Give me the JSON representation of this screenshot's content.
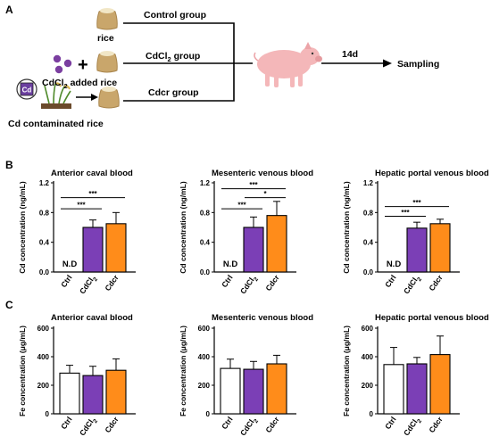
{
  "panels": {
    "a": "A",
    "b": "B",
    "c": "C"
  },
  "schematic": {
    "rice": "rice",
    "cdcl2_rice_prefix": "CdCl",
    "cdcl2_rice_sub": "2",
    "cdcl2_rice_suffix": " added rice",
    "cd_rice": "Cd contaminated rice",
    "cd_badge": "Cd",
    "control_group": "Control group",
    "cdcl2_group_prefix": "CdCl",
    "cdcl2_group_sub": "2",
    "cdcl2_group_suffix": " group",
    "cdcr_group": "Cdcr group",
    "duration": "14d",
    "sampling": "Sampling",
    "colors": {
      "sack": "#c9a66b",
      "sack_dark": "#a9854c",
      "rice_grain": "#f1e6c6",
      "cd_dot": "#7b3fa0",
      "pig": "#f4b7b9",
      "badge": "#6b3fa0"
    }
  },
  "colors": {
    "ctrl": "#ffffff",
    "cdcl2": "#7b3fb6",
    "cdcr": "#ff8c1a",
    "outline": "#000000"
  },
  "chart_data": [
    {
      "type": "bar",
      "row": "B",
      "title": "Anterior caval blood",
      "ylabel": "Cd concentration (ng/mL)",
      "ylim": [
        0,
        1.2
      ],
      "yticks": [
        "0.0",
        "0.4",
        "0.8",
        "1.2"
      ],
      "categories": [
        "Ctrl",
        "CdCl2",
        "Cdcr"
      ],
      "values": [
        0,
        0.6,
        0.65
      ],
      "errors": [
        0,
        0.1,
        0.15
      ],
      "annotations": {
        "not_detected": "N.D",
        "significance": [
          {
            "from": 0,
            "to": 1,
            "label": "***",
            "y": 0.85
          },
          {
            "from": 0,
            "to": 2,
            "label": "***",
            "y": 1.0
          }
        ]
      }
    },
    {
      "type": "bar",
      "row": "B",
      "title": "Mesenteric venous blood",
      "ylabel": "Cd concentration (ng/mL)",
      "ylim": [
        0,
        1.2
      ],
      "yticks": [
        "0.0",
        "0.4",
        "0.8",
        "1.2"
      ],
      "categories": [
        "Ctrl",
        "CdCl2",
        "Cdcr"
      ],
      "values": [
        0,
        0.6,
        0.76
      ],
      "errors": [
        0,
        0.14,
        0.19
      ],
      "annotations": {
        "not_detected": "N.D",
        "significance": [
          {
            "from": 0,
            "to": 1,
            "label": "***",
            "y": 0.85
          },
          {
            "from": 1,
            "to": 2,
            "label": "*",
            "y": 1.0
          },
          {
            "from": 0,
            "to": 2,
            "label": "***",
            "y": 1.12
          }
        ]
      }
    },
    {
      "type": "bar",
      "row": "B",
      "title": "Hepatic portal venous blood",
      "ylabel": "Cd concentration (ng/mL)",
      "ylim": [
        0,
        1.2
      ],
      "yticks": [
        "0.0",
        "0.4",
        "0.8",
        "1.2"
      ],
      "categories": [
        "Ctrl",
        "CdCl2",
        "Cdcr"
      ],
      "values": [
        0,
        0.59,
        0.65
      ],
      "errors": [
        0,
        0.08,
        0.06
      ],
      "annotations": {
        "not_detected": "N.D",
        "significance": [
          {
            "from": 0,
            "to": 1,
            "label": "***",
            "y": 0.75
          },
          {
            "from": 0,
            "to": 2,
            "label": "***",
            "y": 0.88
          }
        ]
      }
    },
    {
      "type": "bar",
      "row": "C",
      "title": "Anterior caval blood",
      "ylabel": "Fe concentration (μg/mL)",
      "ylim": [
        0,
        600
      ],
      "yticks": [
        "0",
        "200",
        "400",
        "600"
      ],
      "categories": [
        "Ctrl",
        "CdCl2",
        "Cdcr"
      ],
      "values": [
        285,
        268,
        305
      ],
      "errors": [
        55,
        65,
        80
      ]
    },
    {
      "type": "bar",
      "row": "C",
      "title": "Mesenteric venous blood",
      "ylabel": "Fe concentration (μg/mL)",
      "ylim": [
        0,
        600
      ],
      "yticks": [
        "0",
        "200",
        "400",
        "600"
      ],
      "categories": [
        "Ctrl",
        "CdCl2",
        "Cdcr"
      ],
      "values": [
        318,
        312,
        350
      ],
      "errors": [
        65,
        55,
        60
      ]
    },
    {
      "type": "bar",
      "row": "C",
      "title": "Hepatic portal venous blood",
      "ylabel": "Fe concentration (μg/mL)",
      "ylim": [
        0,
        600
      ],
      "yticks": [
        "0",
        "200",
        "400",
        "600"
      ],
      "categories": [
        "Ctrl",
        "CdCl2",
        "Cdcr"
      ],
      "values": [
        345,
        350,
        415
      ],
      "errors": [
        120,
        45,
        130
      ]
    }
  ]
}
